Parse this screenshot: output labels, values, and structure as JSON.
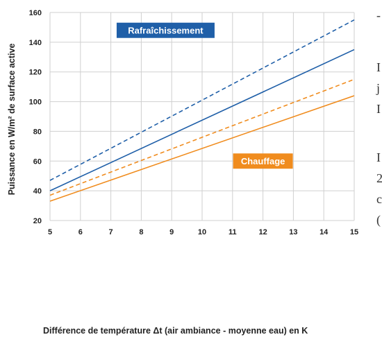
{
  "chart_data": {
    "type": "line",
    "title": "",
    "xlabel": "Différence de température Δt (air ambiance - moyenne eau) en K",
    "ylabel": "Puissance en W/m² de surface active",
    "xlim": [
      5,
      15
    ],
    "ylim": [
      20,
      160
    ],
    "x_ticks": [
      5,
      6,
      7,
      8,
      9,
      10,
      11,
      12,
      13,
      14,
      15
    ],
    "y_ticks": [
      20,
      40,
      60,
      80,
      100,
      120,
      140,
      160
    ],
    "grid": true,
    "series": [
      {
        "name": "Rafraîchissement",
        "style": "dashed",
        "color": "#1f5fa8",
        "x": [
          5,
          15
        ],
        "y": [
          47,
          155
        ]
      },
      {
        "name": "Rafraîchissement",
        "style": "solid",
        "color": "#1f5fa8",
        "x": [
          5,
          15
        ],
        "y": [
          40,
          135
        ]
      },
      {
        "name": "Chauffage",
        "style": "dashed",
        "color": "#f08c1e",
        "x": [
          5,
          15
        ],
        "y": [
          37,
          115
        ]
      },
      {
        "name": "Chauffage",
        "style": "solid",
        "color": "#f08c1e",
        "x": [
          5,
          15
        ],
        "y": [
          33,
          104
        ]
      }
    ],
    "annotations": [
      {
        "text": "Rafraîchissement",
        "color": "#1f5fa8",
        "x": 8.8,
        "y": 148
      },
      {
        "text": "Chauffage",
        "color": "#f08c1e",
        "x": 12.0,
        "y": 60
      }
    ]
  },
  "side_text": [
    "-",
    "I",
    "j",
    "I",
    "I",
    "2",
    "c",
    "("
  ]
}
